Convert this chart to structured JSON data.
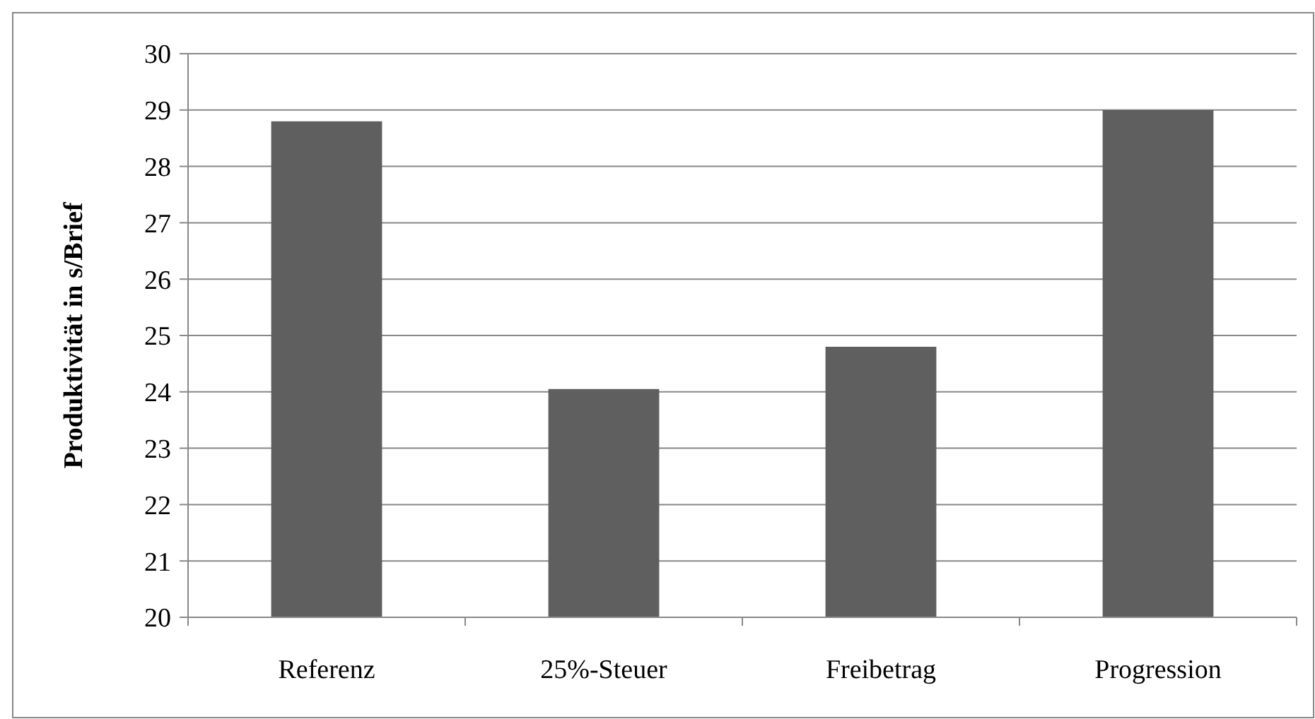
{
  "chart_data": {
    "type": "bar",
    "ylabel": "Produktivität in s/Brief",
    "categories": [
      "Referenz",
      "25%-Steuer",
      "Freibetrag",
      "Progression"
    ],
    "values": [
      28.8,
      24.05,
      24.8,
      29.0
    ],
    "color": "#5f5f5f",
    "ylim": [
      20,
      30
    ],
    "yticks": [
      20,
      21,
      22,
      23,
      24,
      25,
      26,
      27,
      28,
      29,
      30
    ],
    "grid": "y"
  }
}
